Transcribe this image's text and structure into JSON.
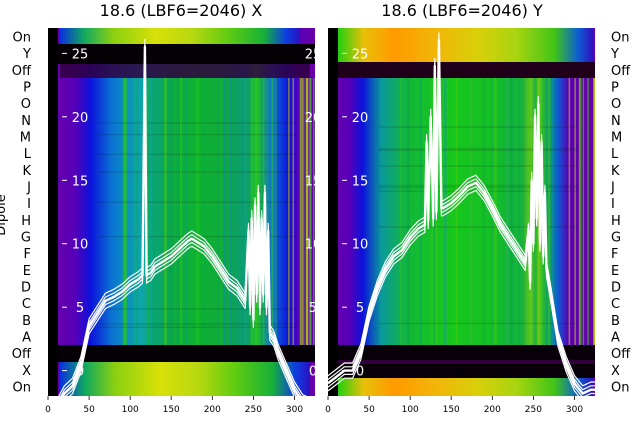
{
  "colors": {
    "trace": "#ffffff",
    "band_dark": "#050005",
    "edge_purple": "#6a00a6",
    "edge_blue": "#0a10e0"
  },
  "chart_data": [
    {
      "type": "line",
      "title": "18.6 (LBF6=2046) X",
      "ylabel": "Dipole",
      "row_labels": [
        "On",
        "Y",
        "Off",
        "P",
        "O",
        "N",
        "M",
        "L",
        "K",
        "J",
        "I",
        "H",
        "G",
        "F",
        "E",
        "D",
        "C",
        "B",
        "A",
        "Off",
        "X",
        "On"
      ],
      "xticks": [
        0,
        50,
        100,
        150,
        200,
        250,
        300
      ],
      "yticks": [
        0,
        5,
        10,
        15,
        20,
        25
      ],
      "xlim": [
        0,
        325
      ],
      "ylim": [
        -2,
        27
      ],
      "grid": false,
      "series": [
        {
          "x": [
            0,
            10,
            20,
            30,
            40,
            50,
            60,
            70,
            80,
            90,
            100,
            110,
            115,
            118,
            120,
            122,
            125,
            130,
            140,
            150,
            160,
            170,
            175,
            180,
            190,
            200,
            210,
            220,
            230,
            240,
            244,
            246,
            248,
            250,
            252,
            254,
            256,
            258,
            260,
            262,
            264,
            266,
            268,
            270,
            275,
            280,
            290,
            300,
            310,
            320,
            325
          ],
          "y": [
            -3,
            -3,
            -1.8,
            -1.2,
            0.5,
            3.5,
            4.5,
            5.5,
            5.8,
            6.2,
            6.8,
            7.2,
            7.5,
            25.5,
            7.5,
            7.6,
            7.7,
            8.2,
            8.6,
            9.0,
            9.6,
            10.2,
            10.4,
            10.2,
            9.8,
            9.0,
            8.0,
            7.0,
            6.5,
            5.5,
            11,
            5,
            12,
            4,
            13,
            6,
            14,
            5,
            12,
            6,
            14,
            5,
            11,
            3,
            2.5,
            1.5,
            0,
            -1.5,
            -2.5,
            -2.8,
            -3
          ]
        }
      ]
    },
    {
      "type": "line",
      "title": "18.6 (LBF6=2046) Y",
      "ylabel": "",
      "row_labels": [
        "On",
        "Y",
        "Off",
        "P",
        "O",
        "N",
        "M",
        "L",
        "K",
        "J",
        "I",
        "H",
        "G",
        "F",
        "E",
        "D",
        "C",
        "B",
        "A",
        "Off",
        "X",
        "On"
      ],
      "xticks": [
        0,
        50,
        100,
        150,
        200,
        250,
        300
      ],
      "yticks": [
        0,
        5,
        10,
        15,
        20,
        25
      ],
      "xlim": [
        0,
        325
      ],
      "ylim": [
        -2,
        27
      ],
      "grid": false,
      "series": [
        {
          "x": [
            0,
            10,
            20,
            30,
            40,
            50,
            60,
            70,
            80,
            90,
            100,
            110,
            118,
            120,
            122,
            125,
            128,
            130,
            132,
            135,
            138,
            140,
            150,
            160,
            170,
            180,
            190,
            200,
            210,
            220,
            230,
            240,
            244,
            246,
            248,
            250,
            252,
            254,
            256,
            258,
            260,
            262,
            264,
            266,
            270,
            275,
            280,
            290,
            300,
            310,
            320,
            325
          ],
          "y": [
            -1,
            -0.5,
            0,
            0,
            1.5,
            4.5,
            6.5,
            8.0,
            9.0,
            9.5,
            10.5,
            11.2,
            11.5,
            18,
            11.8,
            20,
            12,
            24,
            12.5,
            26,
            12.8,
            12.8,
            13.2,
            13.8,
            14.5,
            14.8,
            14.0,
            12.8,
            11.5,
            10.5,
            9.5,
            8.5,
            11,
            7,
            15,
            10,
            20,
            12,
            21,
            10,
            18,
            9,
            14,
            8,
            6.5,
            4.5,
            2.5,
            0.5,
            -1,
            -1.8,
            -1.5,
            -1.5
          ]
        }
      ]
    }
  ]
}
